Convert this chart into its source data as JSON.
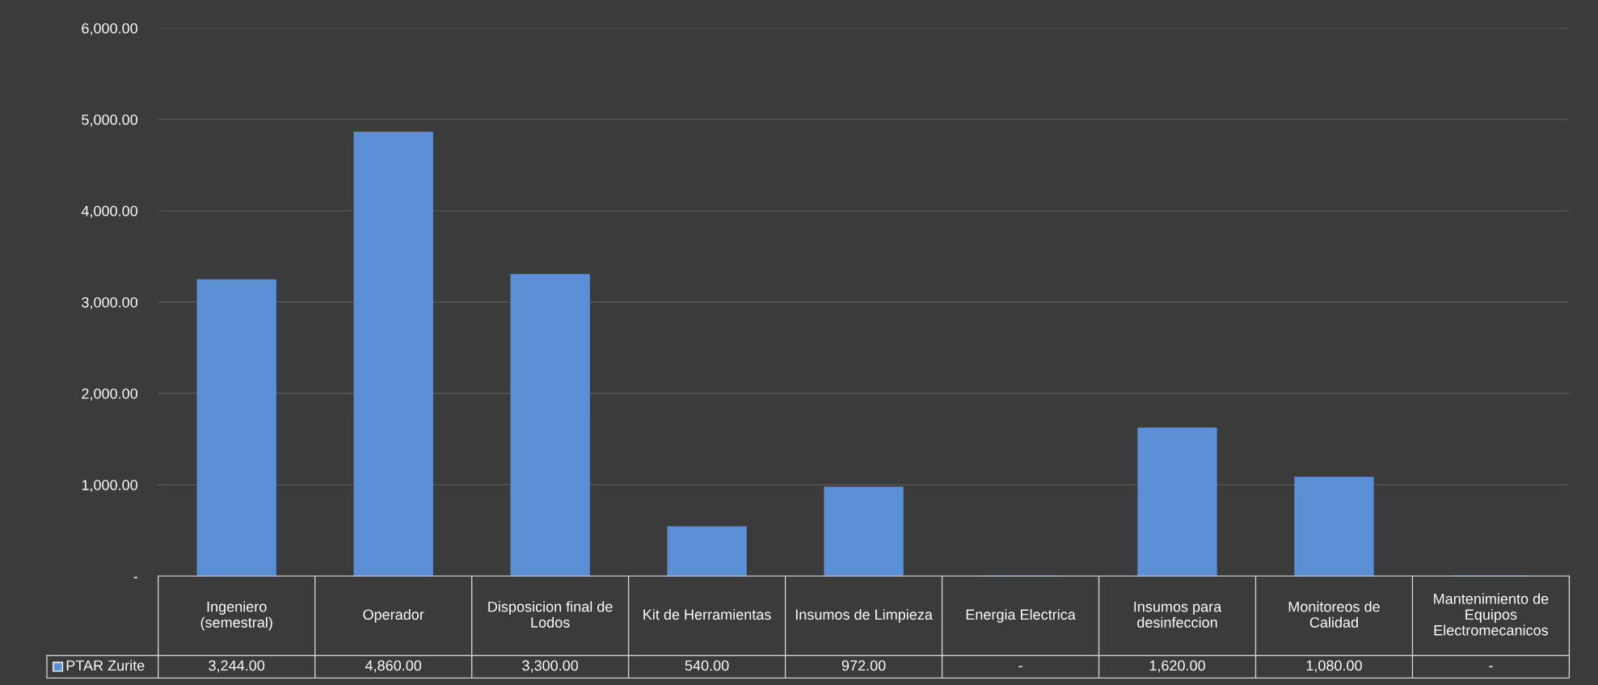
{
  "chart_data": {
    "type": "bar",
    "categories": [
      "Ingeniero (semestral)",
      "Operador",
      "Disposicion final de Lodos",
      "Kit de Herramientas",
      "Insumos de Limpieza",
      "Energia Electrica",
      "Insumos para desinfeccion",
      "Monitoreos de Calidad",
      "Mantenimiento de Equipos Electromecanicos"
    ],
    "series": [
      {
        "name": "PTAR Zurite",
        "color": "#5b8fd6",
        "values": [
          3244,
          4860,
          3300,
          540,
          972,
          0,
          1620,
          1080,
          0
        ],
        "value_labels": [
          "3,244.00",
          "4,860.00",
          "3,300.00",
          "540.00",
          "972.00",
          "-",
          "1,620.00",
          "1,080.00",
          "-"
        ]
      }
    ],
    "ylim": [
      0,
      6000
    ],
    "yticks": [
      {
        "value": 0,
        "label": "-"
      },
      {
        "value": 1000,
        "label": "1,000.00"
      },
      {
        "value": 2000,
        "label": "2,000.00"
      },
      {
        "value": 3000,
        "label": "3,000.00"
      },
      {
        "value": 4000,
        "label": "4,000.00"
      },
      {
        "value": 5000,
        "label": "5,000.00"
      },
      {
        "value": 6000,
        "label": "6,000.00"
      }
    ],
    "grid": "y"
  }
}
